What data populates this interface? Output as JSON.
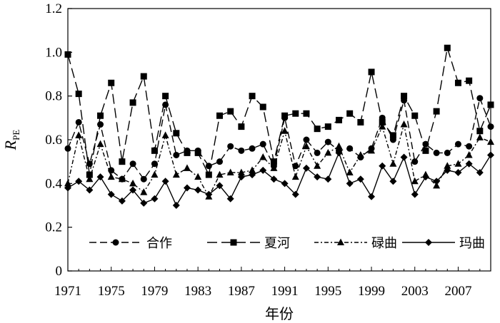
{
  "chart_data": {
    "type": "line",
    "title": "",
    "xlabel": "年份",
    "ylabel": "R",
    "ylabel_sub": "PE",
    "xlim": [
      1971,
      2010
    ],
    "ylim": [
      0,
      1.2
    ],
    "grid": false,
    "legend_position": "bottom-inside",
    "x_ticks": [
      "1971",
      "1975",
      "1979",
      "1983",
      "1987",
      "1991",
      "1995",
      "1999",
      "2003",
      "2007"
    ],
    "y_ticks": [
      "0",
      "0.2",
      "0.4",
      "0.6",
      "0.8",
      "1.0",
      "1.2"
    ],
    "x": [
      1971,
      1972,
      1973,
      1974,
      1975,
      1976,
      1977,
      1978,
      1979,
      1980,
      1981,
      1982,
      1983,
      1984,
      1985,
      1986,
      1987,
      1988,
      1989,
      1990,
      1991,
      1992,
      1993,
      1994,
      1995,
      1996,
      1997,
      1998,
      1999,
      2000,
      2001,
      2002,
      2003,
      2004,
      2005,
      2006,
      2007,
      2008,
      2009,
      2010
    ],
    "series": [
      {
        "name": "合作",
        "marker": "circle",
        "dash": "10,5",
        "values": [
          0.56,
          0.68,
          0.49,
          0.67,
          0.46,
          0.42,
          0.49,
          0.42,
          0.49,
          0.76,
          0.53,
          0.55,
          0.55,
          0.48,
          0.5,
          0.57,
          0.55,
          0.56,
          0.58,
          0.48,
          0.7,
          0.48,
          0.6,
          0.54,
          0.59,
          0.55,
          0.56,
          0.52,
          0.56,
          0.7,
          0.6,
          0.78,
          0.5,
          0.58,
          0.54,
          0.54,
          0.58,
          0.57,
          0.79,
          0.66
        ]
      },
      {
        "name": "夏河",
        "marker": "square",
        "dash": "14,6",
        "values": [
          0.99,
          0.81,
          0.44,
          0.71,
          0.86,
          0.5,
          0.77,
          0.89,
          0.55,
          0.8,
          0.63,
          0.54,
          0.54,
          0.44,
          0.71,
          0.73,
          0.66,
          0.8,
          0.75,
          0.5,
          0.71,
          0.72,
          0.72,
          0.65,
          0.66,
          0.69,
          0.72,
          0.68,
          0.91,
          0.68,
          0.62,
          0.8,
          0.71,
          0.55,
          0.73,
          1.02,
          0.86,
          0.87,
          0.64,
          0.76
        ]
      },
      {
        "name": "碌曲",
        "marker": "triangle",
        "dash": "6,3,2,3",
        "values": [
          0.4,
          0.62,
          0.42,
          0.58,
          0.43,
          0.42,
          0.4,
          0.36,
          0.44,
          0.62,
          0.44,
          0.47,
          0.43,
          0.34,
          0.44,
          0.45,
          0.45,
          0.46,
          0.52,
          0.47,
          0.64,
          0.43,
          0.57,
          0.48,
          0.54,
          0.57,
          0.45,
          0.53,
          0.55,
          0.66,
          0.49,
          0.67,
          0.41,
          0.44,
          0.39,
          0.48,
          0.49,
          0.53,
          0.61,
          0.59
        ]
      },
      {
        "name": "玛曲",
        "marker": "diamond",
        "dash": "",
        "values": [
          0.38,
          0.41,
          0.37,
          0.43,
          0.35,
          0.32,
          0.37,
          0.31,
          0.33,
          0.41,
          0.3,
          0.38,
          0.37,
          0.35,
          0.39,
          0.33,
          0.43,
          0.44,
          0.46,
          0.42,
          0.4,
          0.35,
          0.47,
          0.43,
          0.42,
          0.54,
          0.4,
          0.42,
          0.34,
          0.48,
          0.41,
          0.52,
          0.35,
          0.43,
          0.41,
          0.46,
          0.45,
          0.49,
          0.45,
          0.53
        ]
      }
    ]
  }
}
